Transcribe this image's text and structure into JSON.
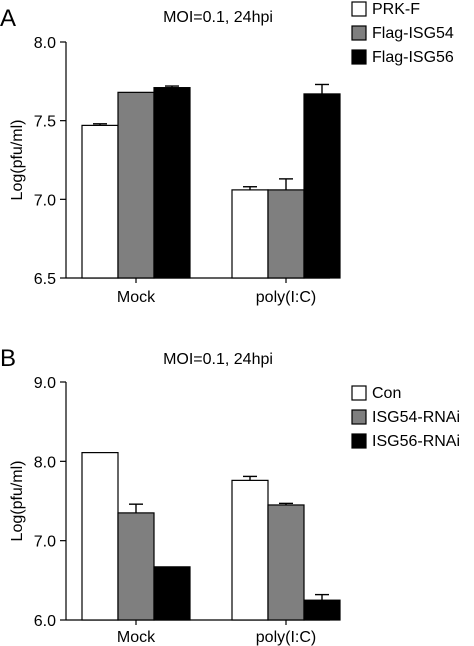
{
  "chart_data": [
    {
      "panel_label": "A",
      "type": "bar",
      "title": "MOI=0.1, 24hpi",
      "ylabel": "Log(pfu/ml)",
      "xlabel": "",
      "ylim": [
        6.5,
        8.0
      ],
      "yticks": [
        "6.5",
        "7.0",
        "7.5",
        "8.0"
      ],
      "categories": [
        "Mock",
        "poly(I:C)"
      ],
      "legend_position": "top-right",
      "grid": false,
      "series": [
        {
          "name": "PRK-F",
          "color": "#ffffff",
          "values": [
            7.47,
            7.06
          ],
          "errors": [
            0.01,
            0.02
          ]
        },
        {
          "name": "Flag-ISG54",
          "color": "#7f7f7f",
          "values": [
            7.68,
            7.06
          ],
          "errors": [
            0.0,
            0.07
          ]
        },
        {
          "name": "Flag-ISG56",
          "color": "#000000",
          "values": [
            7.71,
            7.67
          ],
          "errors": [
            0.01,
            0.06
          ]
        }
      ]
    },
    {
      "panel_label": "B",
      "type": "bar",
      "title": "MOI=0.1, 24hpi",
      "ylabel": "Log(pfu/ml)",
      "xlabel": "",
      "ylim": [
        6.0,
        9.0
      ],
      "yticks": [
        "6.0",
        "7.0",
        "8.0",
        "9.0"
      ],
      "categories": [
        "Mock",
        "poly(I:C)"
      ],
      "legend_position": "top-right",
      "grid": false,
      "series": [
        {
          "name": "Con",
          "color": "#ffffff",
          "values": [
            8.11,
            7.76
          ],
          "errors": [
            0.0,
            0.05
          ]
        },
        {
          "name": "ISG54-RNAi",
          "color": "#7f7f7f",
          "values": [
            7.35,
            7.45
          ],
          "errors": [
            0.11,
            0.02
          ]
        },
        {
          "name": "ISG56-RNAi",
          "color": "#000000",
          "values": [
            6.67,
            6.25
          ],
          "errors": [
            0.0,
            0.07
          ]
        }
      ]
    }
  ]
}
